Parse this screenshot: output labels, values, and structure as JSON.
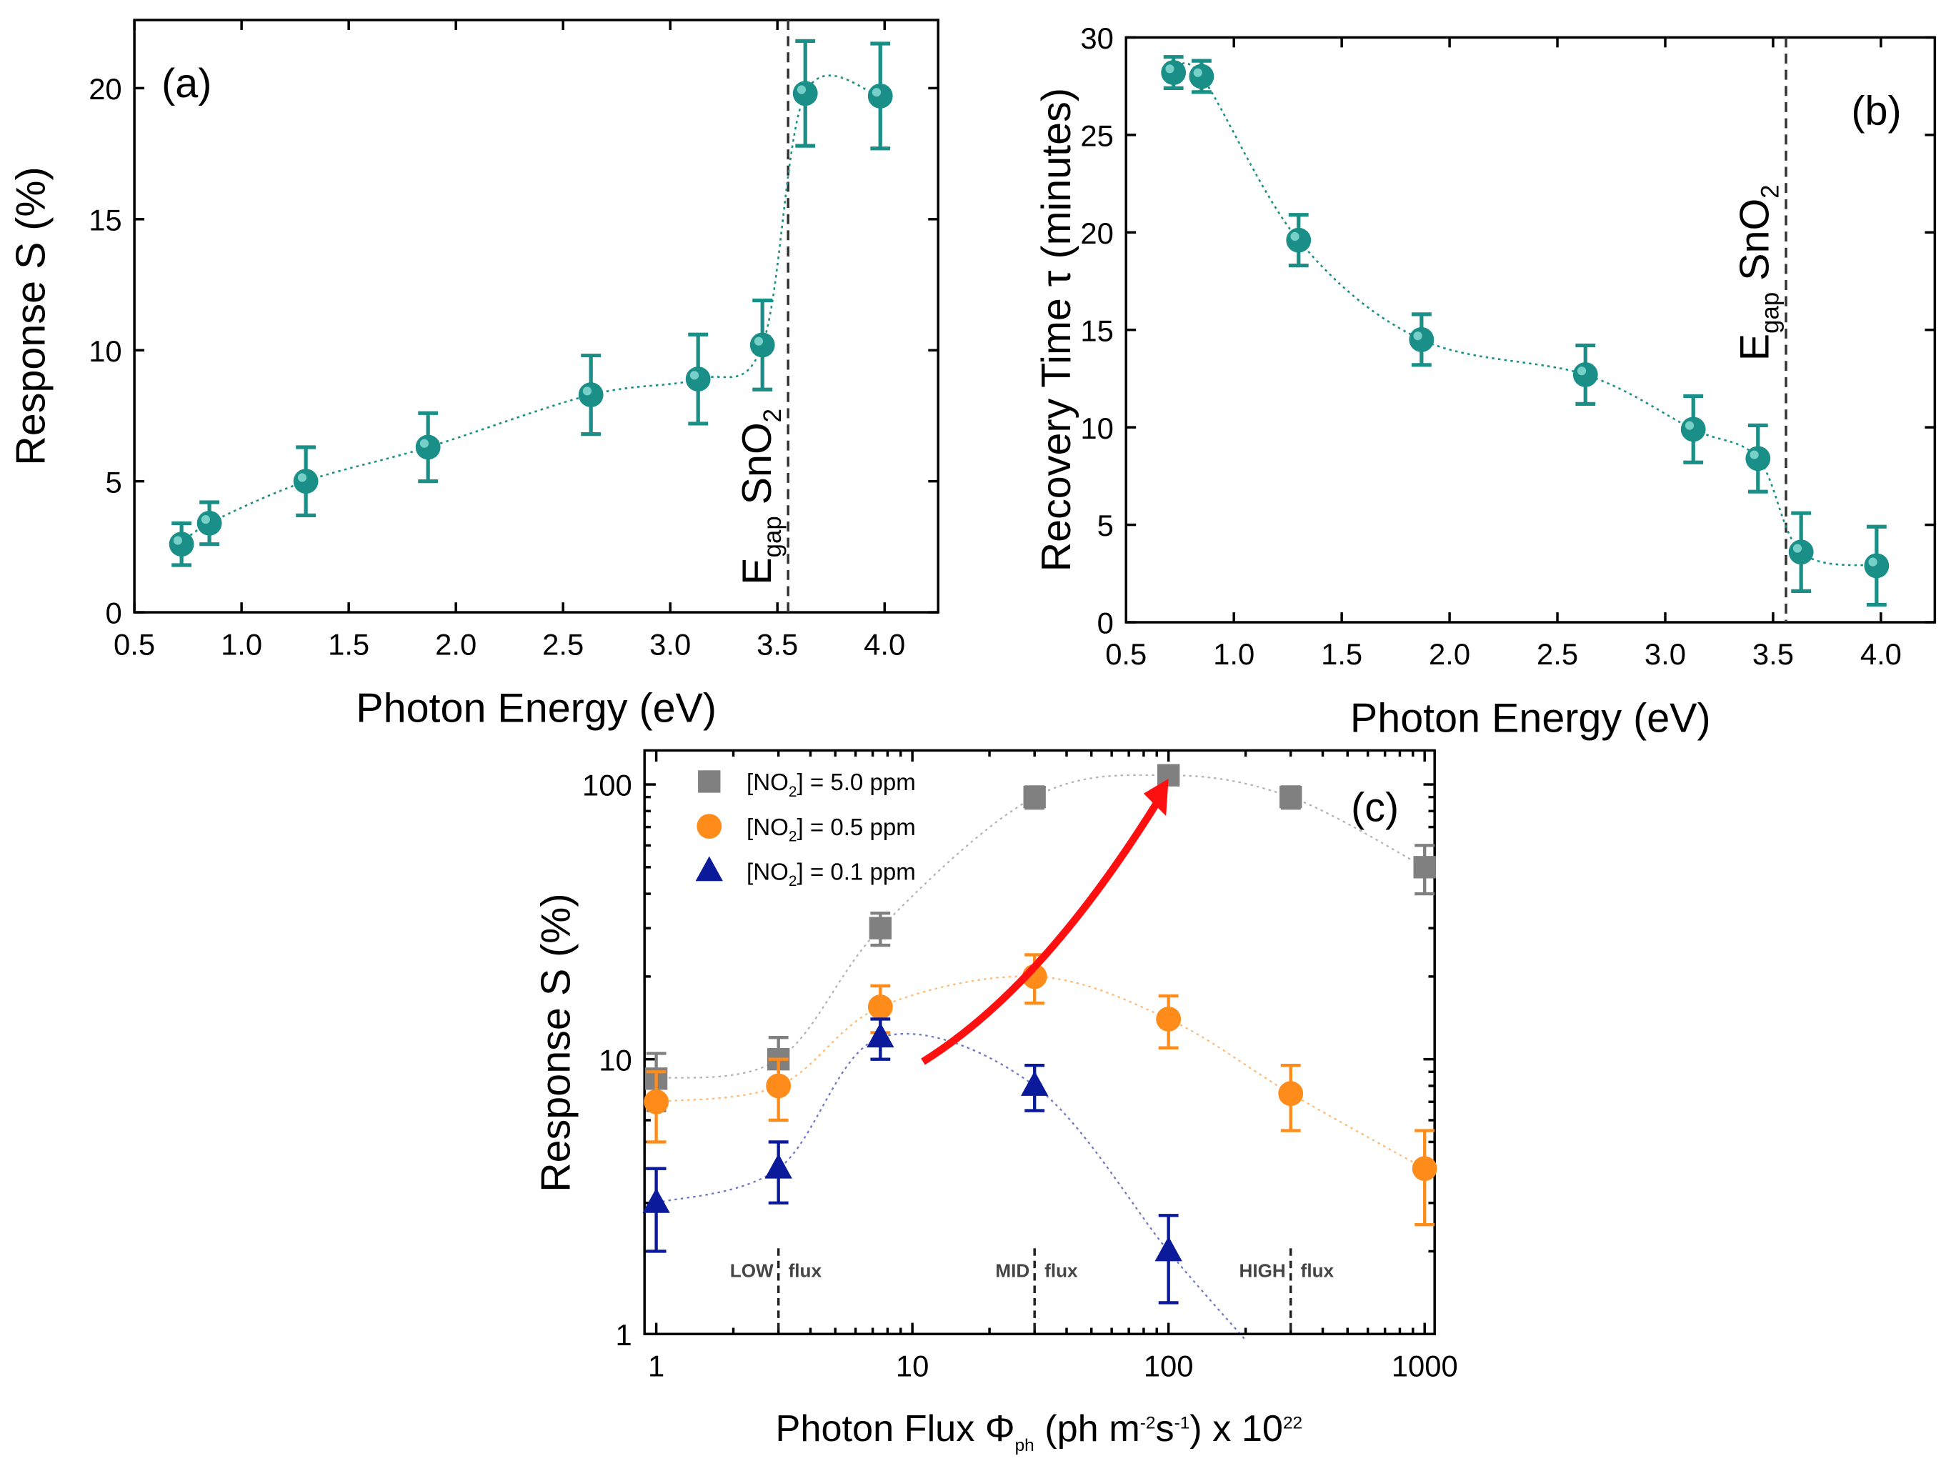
{
  "chart_data": [
    {
      "type": "scatter",
      "panel_label": "(a)",
      "xlabel": "Photon Energy (eV)",
      "ylabel": "Response S (%)",
      "xlim": [
        0.5,
        4.25
      ],
      "ylim": [
        0,
        22.6
      ],
      "xticks": [
        "0.5",
        "1.0",
        "1.5",
        "2.0",
        "2.5",
        "3.0",
        "3.5",
        "4.0"
      ],
      "yticks": [
        "0",
        "5",
        "10",
        "15",
        "20"
      ],
      "annotation": {
        "text": "E",
        "sub": "gap",
        "rest": " SnO",
        "sub2": "2",
        "x": 3.55
      },
      "color": "#1a8f88",
      "x": [
        0.72,
        0.85,
        1.3,
        1.87,
        2.63,
        3.13,
        3.43,
        3.63,
        3.98
      ],
      "y": [
        2.6,
        3.4,
        5.0,
        6.3,
        8.3,
        8.9,
        10.2,
        19.8,
        19.7
      ],
      "err": [
        0.8,
        0.8,
        1.3,
        1.3,
        1.5,
        1.7,
        1.7,
        2.0,
        2.0
      ]
    },
    {
      "type": "scatter",
      "panel_label": "(b)",
      "xlabel": "Photon Energy (eV)",
      "ylabel": "Recovery Time τ (minutes)",
      "xlim": [
        0.5,
        4.25
      ],
      "ylim": [
        0,
        30
      ],
      "xticks": [
        "0.5",
        "1.0",
        "1.5",
        "2.0",
        "2.5",
        "3.0",
        "3.5",
        "4.0"
      ],
      "yticks": [
        "0",
        "5",
        "10",
        "15",
        "20",
        "25",
        "30"
      ],
      "annotation": {
        "text": "E",
        "sub": "gap",
        "rest": " SnO",
        "sub2": "2",
        "x": 3.56
      },
      "color": "#1a8f88",
      "x": [
        0.72,
        0.85,
        1.3,
        1.87,
        2.63,
        3.13,
        3.43,
        3.63,
        3.98
      ],
      "y": [
        28.2,
        28.0,
        19.6,
        14.5,
        12.7,
        9.9,
        8.4,
        3.6,
        2.9
      ],
      "err": [
        0.8,
        0.8,
        1.3,
        1.3,
        1.5,
        1.7,
        1.7,
        2.0,
        2.0
      ]
    },
    {
      "type": "scatter",
      "panel_label": "(c)",
      "xlabel": "Photon Flux Φ",
      "xlabel_sub": "ph",
      "xlabel_rest": " (ph m",
      "xlabel_sup1": "-2",
      "xlabel_mid": "s",
      "xlabel_sup2": "-1",
      "xlabel_end": ") x 10",
      "xlabel_sup3": "22",
      "ylabel": "Response S (%)",
      "xscale": "log",
      "yscale": "log",
      "xlim": [
        0.9,
        1094
      ],
      "ylim": [
        1,
        133
      ],
      "xticks": [
        "1",
        "10",
        "100",
        "1000"
      ],
      "yticks": [
        "1",
        "10",
        "100"
      ],
      "flux_regions": [
        {
          "left": "LOW",
          "right": "flux",
          "x": 3
        },
        {
          "left": "MID",
          "right": "flux",
          "x": 30
        },
        {
          "left": "HIGH",
          "right": "flux",
          "x": 300
        }
      ],
      "arrow": {
        "from": [
          11,
          9.8
        ],
        "to": [
          100,
          105
        ],
        "color": "#ff1010"
      },
      "series": [
        {
          "name": "[NO2] = 5.0 ppm",
          "legend": [
            "[NO",
            "2",
            "] = 5.0 ppm"
          ],
          "marker": "square",
          "color": "#808080",
          "x": [
            1,
            3,
            7.5,
            30,
            100,
            300,
            1000
          ],
          "y": [
            8.5,
            10,
            30,
            90,
            108,
            90,
            50
          ],
          "err": [
            2,
            2,
            4,
            8,
            8,
            8,
            10
          ]
        },
        {
          "name": "[NO2] = 0.5 ppm",
          "legend": [
            "[NO",
            "2",
            "] = 0.5 ppm"
          ],
          "marker": "circle",
          "color": "#ff8c1a",
          "x": [
            1,
            3,
            7.5,
            30,
            100,
            300,
            1000
          ],
          "y": [
            7,
            8,
            15.5,
            20,
            14,
            7.5,
            4
          ],
          "err": [
            2,
            2,
            3,
            4,
            3,
            2,
            1.5
          ]
        },
        {
          "name": "[NO2] = 0.1 ppm",
          "legend": [
            "[NO",
            "2",
            "] = 0.1 ppm"
          ],
          "marker": "triangle",
          "color": "#0a1a9a",
          "x": [
            1,
            3,
            7.5,
            30,
            100
          ],
          "y": [
            3,
            4,
            12,
            8,
            2
          ],
          "err": [
            1,
            1,
            2,
            1.5,
            0.7
          ]
        }
      ]
    }
  ]
}
